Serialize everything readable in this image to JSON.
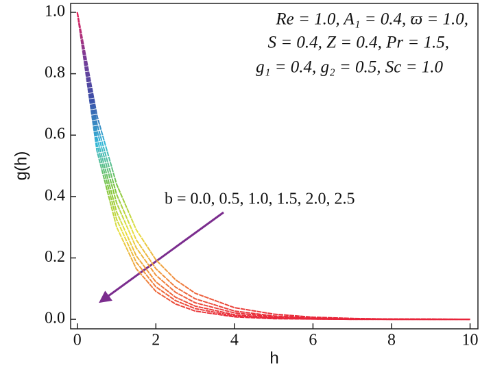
{
  "chart_data": {
    "type": "line",
    "xlabel": "h",
    "ylabel": "g(h)",
    "annotations": [
      "Re = 1.0, A₁ = 0.4, ϖ = 1.0,",
      "S = 0.4, Z = 0.4, Pr = 1.5,",
      "g₁ = 0.4, g₂ = 0.5, Sc = 1.0",
      "b = 0.0, 0.5, 1.0, 1.5, 2.0, 2.5"
    ],
    "x": [
      0,
      0.5,
      1,
      1.5,
      2,
      2.5,
      3,
      4,
      5,
      6,
      7,
      8,
      9,
      10
    ],
    "series": [
      {
        "values": [
          1,
          0.664,
          0.44,
          0.292,
          0.194,
          0.129,
          0.085,
          0.038,
          0.017,
          0.007,
          0.003,
          0.001,
          0.001,
          0
        ]
      },
      {
        "values": [
          1,
          0.638,
          0.407,
          0.259,
          0.165,
          0.105,
          0.067,
          0.027,
          0.011,
          0.005,
          0.002,
          0.001,
          0,
          0
        ]
      },
      {
        "values": [
          1,
          0.616,
          0.379,
          0.233,
          0.144,
          0.088,
          0.054,
          0.021,
          0.008,
          0.003,
          0.001,
          0,
          0,
          0
        ]
      },
      {
        "values": [
          1,
          0.592,
          0.35,
          0.207,
          0.122,
          0.072,
          0.043,
          0.015,
          0.005,
          0.002,
          0.001,
          0,
          0,
          0
        ]
      },
      {
        "values": [
          1,
          0.571,
          0.326,
          0.186,
          0.106,
          0.061,
          0.035,
          0.011,
          0.004,
          0.001,
          0,
          0,
          0,
          0
        ]
      },
      {
        "values": [
          1,
          0.549,
          0.301,
          0.165,
          0.091,
          0.05,
          0.027,
          0.008,
          0.002,
          0.001,
          0,
          0,
          0,
          0
        ]
      }
    ],
    "color_gradient": [
      "#e8245a",
      "#7b3a96",
      "#3a4fa8",
      "#35b8d8",
      "#7cc43a",
      "#e8e040",
      "#f0903a",
      "#e8243a"
    ],
    "xlim": [
      -0.17,
      10.2
    ],
    "ylim": [
      -0.031,
      1.029
    ],
    "xticks": [
      0,
      2,
      4,
      6,
      8,
      10
    ],
    "yticks": [
      {
        "value": 0,
        "label": "0.0"
      },
      {
        "value": 0.2,
        "label": "0.2"
      },
      {
        "value": 0.4,
        "label": "0.4"
      },
      {
        "value": 0.6,
        "label": "0.6"
      },
      {
        "value": 0.8,
        "label": "0.8"
      },
      {
        "value": 1,
        "label": "1.0"
      }
    ],
    "grid": false
  }
}
